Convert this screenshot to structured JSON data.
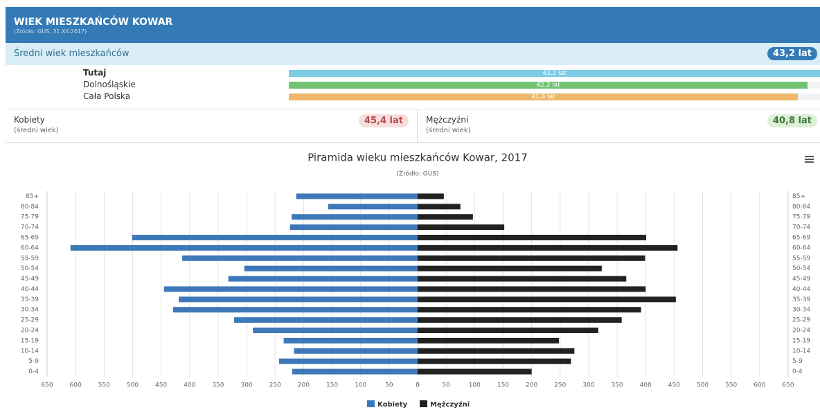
{
  "header": {
    "title": "WIEK MIESZKAŃCÓW KOWAR",
    "source": "(Źródło: GUS, 31.XII.2017)"
  },
  "average": {
    "label": "Średni wiek mieszkańców",
    "badge": "43,2 lat"
  },
  "comparison": [
    {
      "name": "Tutaj",
      "value": 43.2,
      "label": "43,2 lat",
      "color": "#7ccbe5"
    },
    {
      "name": "Dolnośląskie",
      "value": 42.2,
      "label": "42,2 lat",
      "color": "#72c272"
    },
    {
      "name": "Cała Polska",
      "value": 41.4,
      "label": "41,4 lat",
      "color": "#f0b76c"
    }
  ],
  "gender": [
    {
      "name": "Kobiety",
      "note": "(średni wiek)",
      "badge": "45,4 lat"
    },
    {
      "name": "Mężczyźni",
      "note": "(średni wiek)",
      "badge": "40,8 lat"
    }
  ],
  "chart_data": {
    "type": "pyramid",
    "title": "Piramida wieku mieszkańców Kowar, 2017",
    "subtitle": "(Źródło: GUS)",
    "categories": [
      "85+",
      "80-84",
      "75-79",
      "70-74",
      "65-69",
      "60-64",
      "55-59",
      "50-54",
      "45-49",
      "40-44",
      "35-39",
      "30-34",
      "25-29",
      "20-24",
      "15-19",
      "10-14",
      "5-9",
      "0-4"
    ],
    "series": [
      {
        "name": "Kobiety",
        "color": "#3d79b8",
        "values": [
          213,
          157,
          221,
          224,
          501,
          609,
          413,
          304,
          332,
          445,
          419,
          429,
          322,
          289,
          235,
          217,
          243,
          220
        ]
      },
      {
        "name": "Mężczyźni",
        "color": "#222222",
        "values": [
          46,
          75,
          97,
          152,
          401,
          456,
          399,
          323,
          366,
          400,
          453,
          392,
          358,
          317,
          248,
          275,
          269,
          200
        ]
      }
    ],
    "xlim": [
      0,
      650
    ],
    "xticks": [
      0,
      50,
      100,
      150,
      200,
      250,
      300,
      350,
      400,
      450,
      500,
      550,
      600,
      650
    ],
    "grid": true
  }
}
